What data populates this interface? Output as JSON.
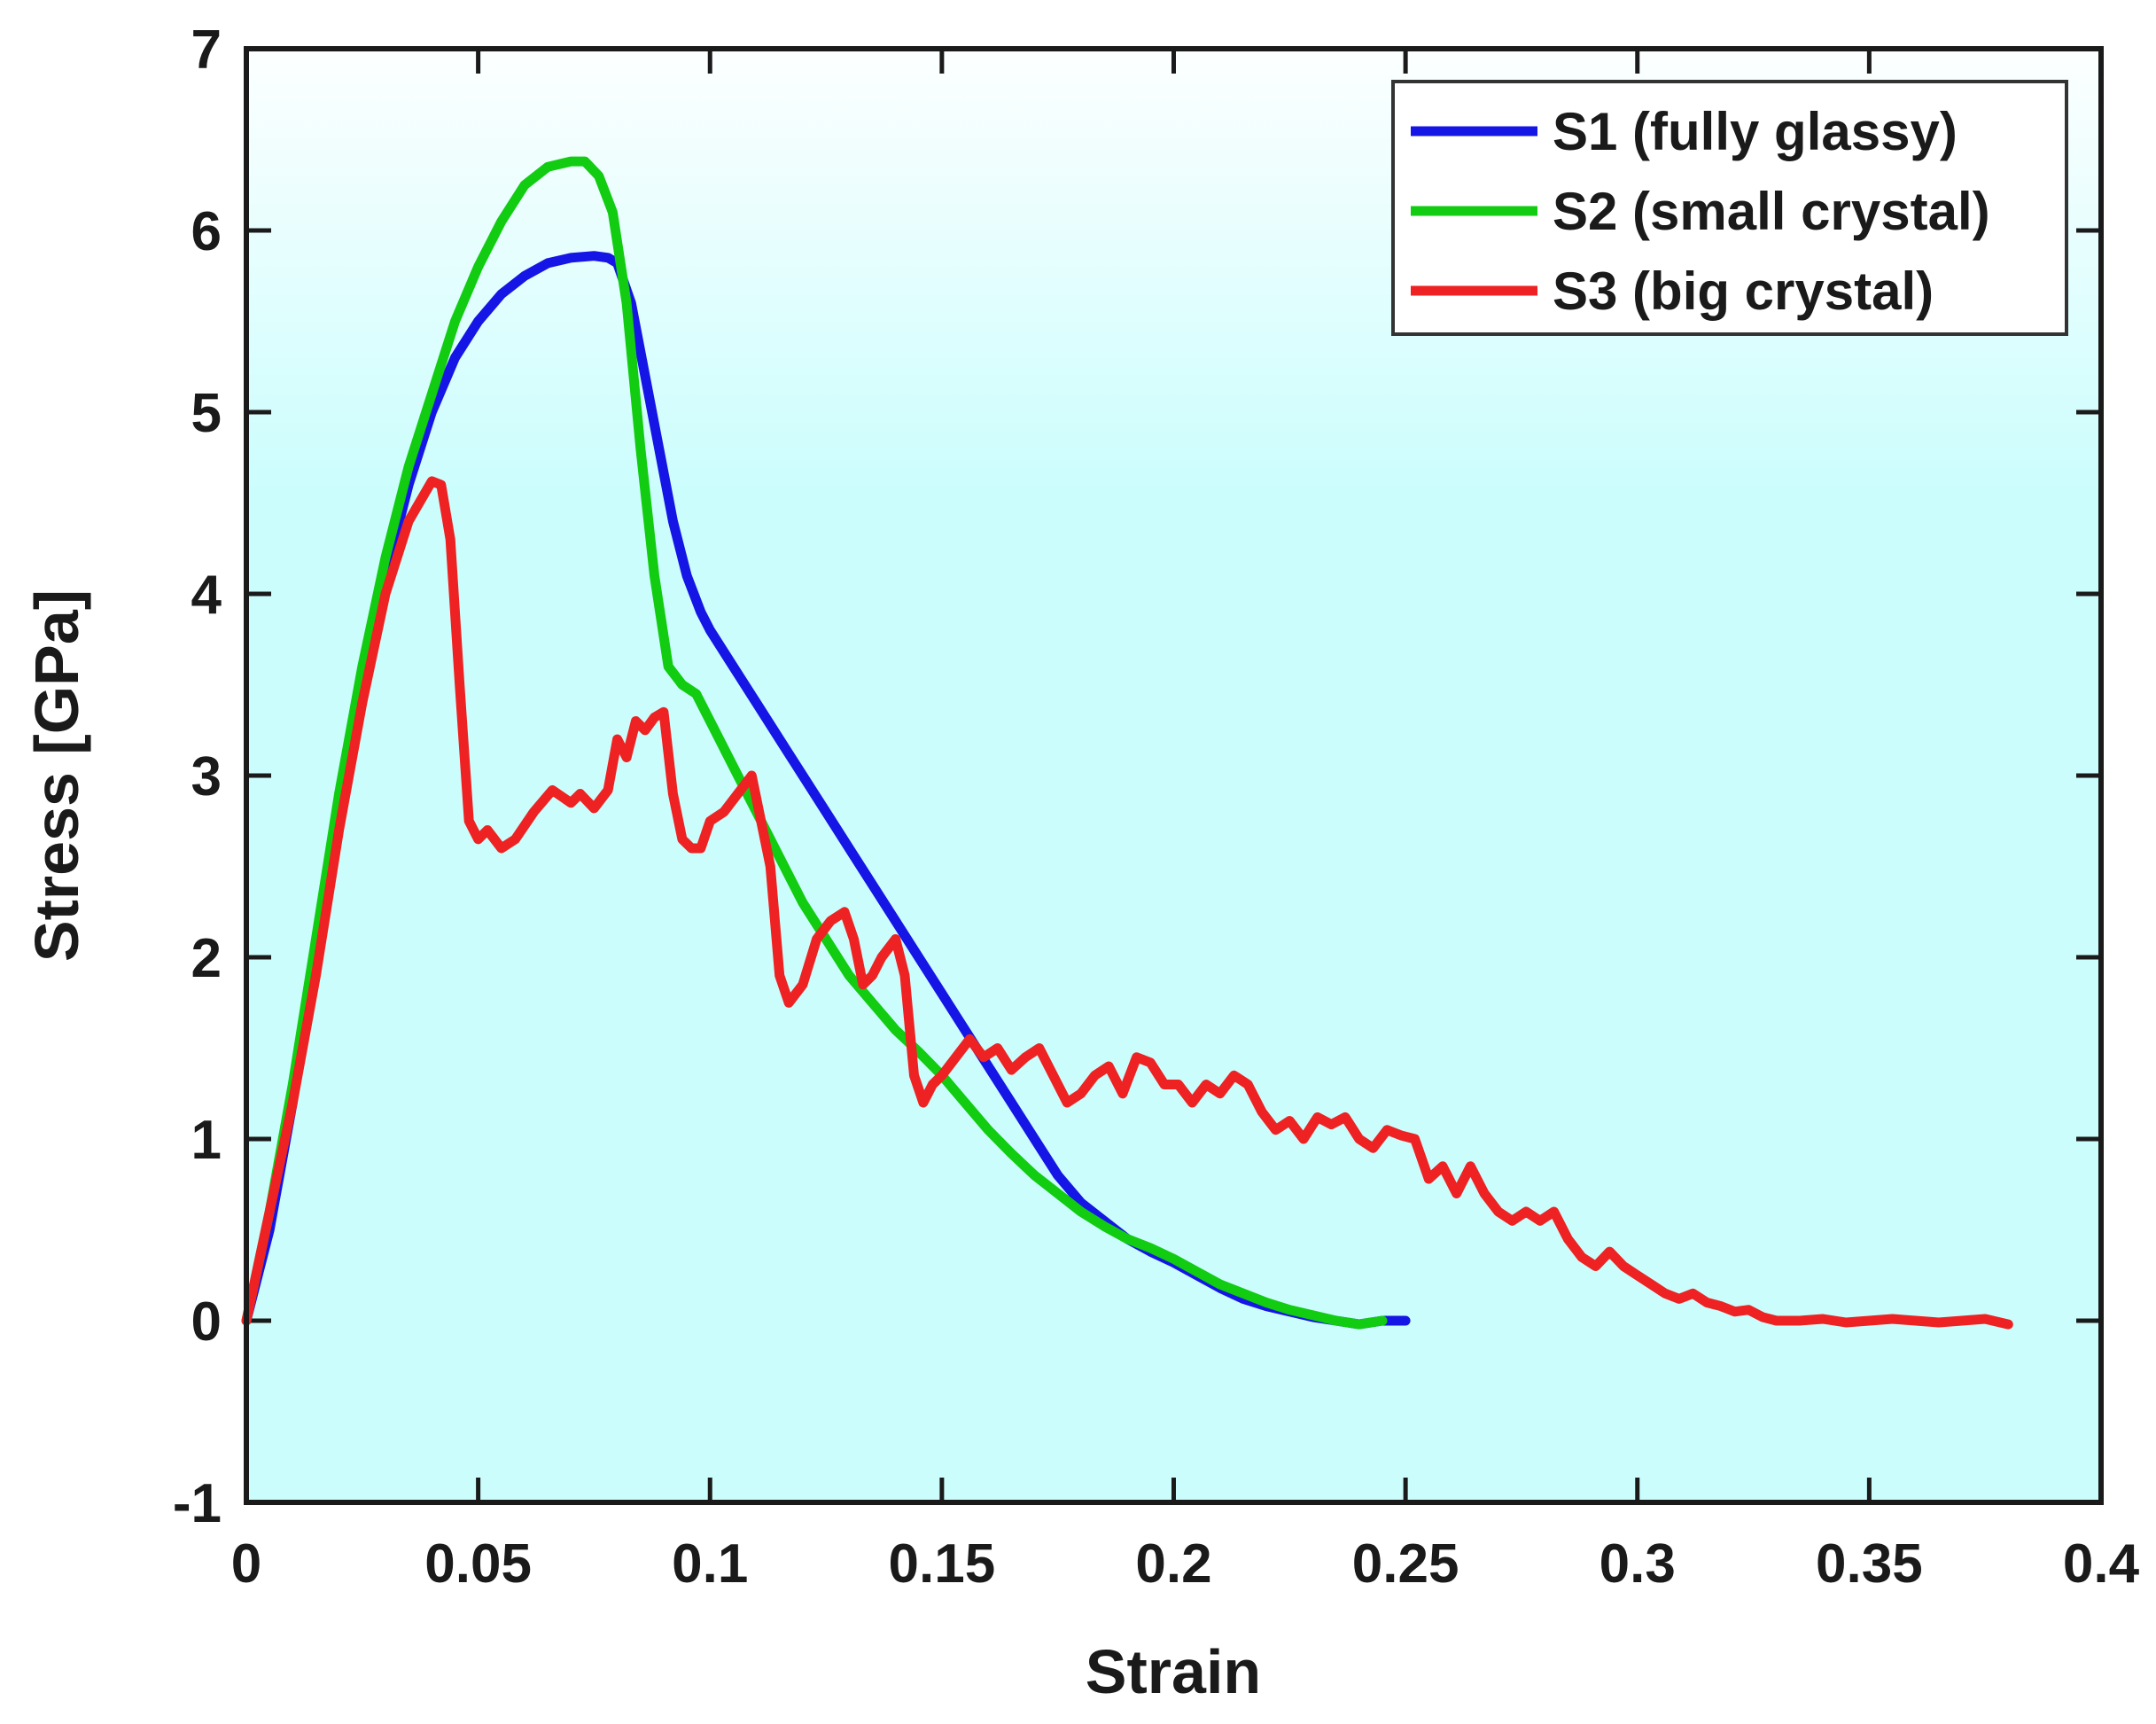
{
  "chart_data": {
    "type": "line",
    "title": "",
    "xlabel": "Strain",
    "ylabel": "Stress [GPa]",
    "xlim": [
      0,
      0.4
    ],
    "ylim": [
      -1,
      7
    ],
    "xticks": [
      0,
      0.05,
      0.1,
      0.15,
      0.2,
      0.25,
      0.3,
      0.35,
      0.4
    ],
    "xtick_labels": [
      "0",
      "0.05",
      "0.1",
      "0.15",
      "0.2",
      "0.25",
      "0.3",
      "0.35",
      "0.4"
    ],
    "yticks": [
      -1,
      0,
      1,
      2,
      3,
      4,
      5,
      6,
      7
    ],
    "ytick_labels": [
      "-1",
      "0",
      "1",
      "2",
      "3",
      "4",
      "5",
      "6",
      "7"
    ],
    "background": "#ccfdfd",
    "legend_position": "top-right",
    "series": [
      {
        "name": "S1 (fully glassy)",
        "color": "#1515e6",
        "x": [
          0,
          0.005,
          0.01,
          0.015,
          0.02,
          0.025,
          0.03,
          0.035,
          0.04,
          0.045,
          0.05,
          0.055,
          0.06,
          0.065,
          0.07,
          0.075,
          0.078,
          0.08,
          0.083,
          0.086,
          0.089,
          0.092,
          0.095,
          0.098,
          0.1,
          0.105,
          0.11,
          0.115,
          0.12,
          0.125,
          0.13,
          0.135,
          0.14,
          0.145,
          0.15,
          0.155,
          0.16,
          0.165,
          0.17,
          0.175,
          0.18,
          0.185,
          0.19,
          0.195,
          0.2,
          0.205,
          0.21,
          0.215,
          0.22,
          0.225,
          0.23,
          0.235,
          0.24,
          0.245,
          0.25
        ],
        "values": [
          0,
          0.5,
          1.2,
          2.0,
          2.8,
          3.5,
          4.1,
          4.6,
          5.0,
          5.3,
          5.5,
          5.65,
          5.75,
          5.82,
          5.85,
          5.86,
          5.85,
          5.82,
          5.6,
          5.2,
          4.8,
          4.4,
          4.1,
          3.9,
          3.8,
          3.6,
          3.4,
          3.2,
          3.0,
          2.8,
          2.6,
          2.4,
          2.2,
          2.0,
          1.8,
          1.6,
          1.4,
          1.2,
          1.0,
          0.8,
          0.65,
          0.55,
          0.45,
          0.38,
          0.32,
          0.25,
          0.18,
          0.12,
          0.08,
          0.05,
          0.02,
          0.0,
          -0.02,
          0.0,
          0.0
        ]
      },
      {
        "name": "S2 (small crystal)",
        "color": "#11cc11",
        "x": [
          0,
          0.005,
          0.01,
          0.015,
          0.02,
          0.025,
          0.03,
          0.035,
          0.04,
          0.045,
          0.05,
          0.055,
          0.06,
          0.065,
          0.07,
          0.073,
          0.076,
          0.079,
          0.082,
          0.085,
          0.088,
          0.091,
          0.094,
          0.097,
          0.1,
          0.105,
          0.11,
          0.115,
          0.12,
          0.125,
          0.13,
          0.135,
          0.14,
          0.145,
          0.15,
          0.155,
          0.16,
          0.165,
          0.17,
          0.175,
          0.18,
          0.185,
          0.19,
          0.195,
          0.2,
          0.205,
          0.21,
          0.215,
          0.22,
          0.225,
          0.23,
          0.235,
          0.24,
          0.245
        ],
        "values": [
          0,
          0.6,
          1.3,
          2.1,
          2.9,
          3.6,
          4.2,
          4.7,
          5.1,
          5.5,
          5.8,
          6.05,
          6.25,
          6.35,
          6.38,
          6.38,
          6.3,
          6.1,
          5.6,
          4.8,
          4.1,
          3.6,
          3.5,
          3.45,
          3.3,
          3.05,
          2.8,
          2.55,
          2.3,
          2.1,
          1.9,
          1.75,
          1.6,
          1.48,
          1.35,
          1.2,
          1.05,
          0.92,
          0.8,
          0.7,
          0.6,
          0.52,
          0.45,
          0.4,
          0.34,
          0.27,
          0.2,
          0.15,
          0.1,
          0.06,
          0.03,
          0.0,
          -0.02,
          0.0
        ]
      },
      {
        "name": "S3 (big crystal)",
        "color": "#ee2222",
        "x": [
          0,
          0.005,
          0.01,
          0.015,
          0.02,
          0.025,
          0.03,
          0.035,
          0.04,
          0.042,
          0.044,
          0.046,
          0.048,
          0.05,
          0.052,
          0.055,
          0.058,
          0.062,
          0.066,
          0.07,
          0.072,
          0.075,
          0.078,
          0.08,
          0.082,
          0.084,
          0.086,
          0.088,
          0.09,
          0.092,
          0.094,
          0.096,
          0.098,
          0.1,
          0.103,
          0.106,
          0.109,
          0.111,
          0.113,
          0.115,
          0.117,
          0.12,
          0.123,
          0.126,
          0.129,
          0.131,
          0.133,
          0.135,
          0.137,
          0.14,
          0.142,
          0.144,
          0.146,
          0.148,
          0.15,
          0.153,
          0.156,
          0.159,
          0.162,
          0.165,
          0.168,
          0.171,
          0.174,
          0.177,
          0.18,
          0.183,
          0.186,
          0.189,
          0.192,
          0.195,
          0.198,
          0.201,
          0.204,
          0.207,
          0.21,
          0.213,
          0.216,
          0.219,
          0.222,
          0.225,
          0.228,
          0.231,
          0.234,
          0.237,
          0.24,
          0.243,
          0.246,
          0.249,
          0.252,
          0.255,
          0.258,
          0.261,
          0.264,
          0.267,
          0.27,
          0.273,
          0.276,
          0.279,
          0.282,
          0.285,
          0.288,
          0.291,
          0.294,
          0.297,
          0.3,
          0.303,
          0.306,
          0.309,
          0.312,
          0.315,
          0.318,
          0.321,
          0.324,
          0.327,
          0.33,
          0.335,
          0.34,
          0.345,
          0.35,
          0.355,
          0.36,
          0.365,
          0.37,
          0.375,
          0.38
        ],
        "values": [
          0,
          0.6,
          1.2,
          1.9,
          2.7,
          3.4,
          4.0,
          4.4,
          4.62,
          4.6,
          4.3,
          3.5,
          2.75,
          2.65,
          2.7,
          2.6,
          2.65,
          2.8,
          2.92,
          2.85,
          2.9,
          2.82,
          2.92,
          3.2,
          3.1,
          3.3,
          3.25,
          3.32,
          3.35,
          2.9,
          2.65,
          2.6,
          2.6,
          2.75,
          2.8,
          2.9,
          3.0,
          2.75,
          2.5,
          1.9,
          1.75,
          1.85,
          2.1,
          2.2,
          2.25,
          2.1,
          1.85,
          1.9,
          2.0,
          2.1,
          1.9,
          1.35,
          1.2,
          1.3,
          1.35,
          1.45,
          1.55,
          1.45,
          1.5,
          1.38,
          1.45,
          1.5,
          1.35,
          1.2,
          1.25,
          1.35,
          1.4,
          1.25,
          1.45,
          1.42,
          1.3,
          1.3,
          1.2,
          1.3,
          1.25,
          1.35,
          1.3,
          1.15,
          1.05,
          1.1,
          1.0,
          1.12,
          1.08,
          1.12,
          1.0,
          0.95,
          1.05,
          1.02,
          1.0,
          0.78,
          0.85,
          0.7,
          0.85,
          0.7,
          0.6,
          0.55,
          0.6,
          0.55,
          0.6,
          0.45,
          0.35,
          0.3,
          0.38,
          0.3,
          0.25,
          0.2,
          0.15,
          0.12,
          0.15,
          0.1,
          0.08,
          0.05,
          0.06,
          0.02,
          0.0,
          0.0,
          0.01,
          -0.01,
          0.0,
          0.01,
          0.0,
          -0.01,
          0.0,
          0.01,
          -0.02
        ]
      }
    ]
  }
}
